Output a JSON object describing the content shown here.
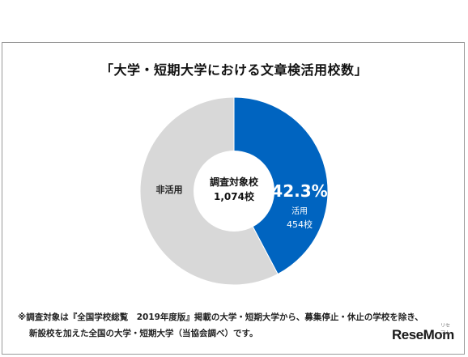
{
  "chart_data": {
    "type": "pie",
    "title": "「大学・短期大学における文章検活用校数」",
    "center_label": [
      "調査対象校",
      "1,074校"
    ],
    "slices": [
      {
        "label": "活用",
        "value": 454,
        "percent_label": "42.3%",
        "count_label": "454校",
        "color": "#0064c0"
      },
      {
        "label": "非活用",
        "value": 620,
        "color": "#d8d8d8"
      }
    ]
  },
  "footnote": {
    "line1": "※調査対象は『全国学校総覧　2019年度版』掲載の大学・短期大学から、募集停止・休止の学校を除き、",
    "line2": "新設校を加えた全国の大学・短期大学（当協会調べ）です。"
  },
  "logo": {
    "text": "ReseMom",
    "sub": "リセマム"
  }
}
